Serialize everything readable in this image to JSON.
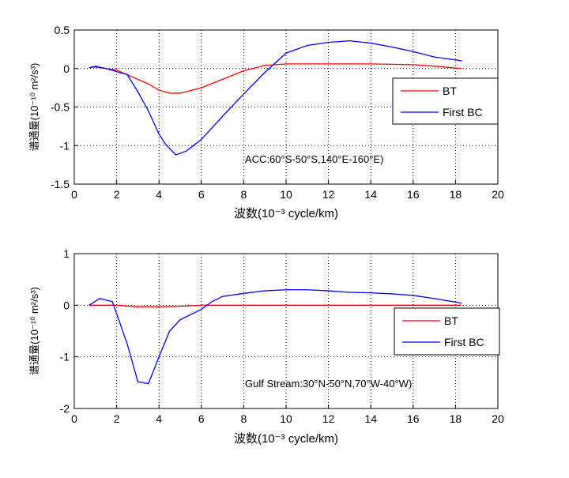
{
  "chart_data": [
    {
      "type": "line",
      "xlabel": "波数(10⁻³ cycle/km)",
      "ylabel": "谱通量(10⁻¹⁰ m²/s³)",
      "annotation": "ACC:60°S-50°S,140°E-160°E)",
      "xlim": [
        0,
        20
      ],
      "ylim": [
        -1.5,
        0.5
      ],
      "xticks": [
        "0",
        "2",
        "4",
        "6",
        "8",
        "10",
        "12",
        "14",
        "16",
        "18",
        "20"
      ],
      "yticks": [
        "-1.5",
        "-1",
        "-0.5",
        "0",
        "0.5"
      ],
      "yticks_values": [
        -1.5,
        -1,
        -0.5,
        0,
        0.5
      ],
      "grid": true,
      "legend_placement": "right",
      "series": [
        {
          "name": "BT",
          "color": "#ff0000",
          "x": [
            0.7,
            1,
            2,
            3,
            3.5,
            4,
            4.5,
            5,
            6,
            7,
            8,
            9,
            10,
            12,
            14,
            16,
            17,
            18.3
          ],
          "y": [
            0.01,
            0.02,
            -0.02,
            -0.14,
            -0.2,
            -0.28,
            -0.32,
            -0.32,
            -0.25,
            -0.14,
            -0.03,
            0.04,
            0.06,
            0.06,
            0.06,
            0.05,
            0.03,
            0.0
          ]
        },
        {
          "name": "First BC",
          "color": "#0000ff",
          "x": [
            0.7,
            1,
            1.5,
            2,
            2.5,
            3,
            3.5,
            4,
            4.3,
            4.8,
            5.3,
            6,
            7,
            8,
            9,
            10,
            11,
            12,
            13,
            14,
            15,
            16,
            17,
            18.3
          ],
          "y": [
            0.01,
            0.03,
            0.0,
            -0.04,
            -0.08,
            -0.3,
            -0.55,
            -0.85,
            -0.98,
            -1.12,
            -1.07,
            -0.92,
            -0.62,
            -0.33,
            -0.05,
            0.2,
            0.3,
            0.34,
            0.36,
            0.33,
            0.28,
            0.22,
            0.15,
            0.1
          ]
        }
      ]
    },
    {
      "type": "line",
      "xlabel": "波数(10⁻³ cycle/km)",
      "ylabel": "谱通量(10⁻¹⁰ m²/s³)",
      "annotation": "Gulf Stream:30°N-50°N,70°W-40°W)",
      "xlim": [
        0,
        20
      ],
      "ylim": [
        -2,
        1
      ],
      "xticks": [
        "0",
        "2",
        "4",
        "6",
        "8",
        "10",
        "12",
        "14",
        "16",
        "18",
        "20"
      ],
      "yticks": [
        "-2",
        "-1",
        "0",
        "1"
      ],
      "yticks_values": [
        -2,
        -1,
        0,
        1
      ],
      "grid": true,
      "legend_placement": "right",
      "series": [
        {
          "name": "BT",
          "color": "#ff0000",
          "x": [
            0.7,
            2,
            3,
            4,
            5,
            6,
            10,
            18.3
          ],
          "y": [
            0,
            0,
            -0.03,
            -0.03,
            -0.02,
            0,
            0,
            0
          ]
        },
        {
          "name": "First BC",
          "color": "#0000ff",
          "x": [
            0.7,
            1.2,
            1.8,
            2.5,
            3,
            3.5,
            4,
            4.5,
            5,
            5.5,
            6,
            6.5,
            7,
            8,
            9,
            10,
            11,
            12,
            13,
            14,
            15,
            16,
            17,
            18.3
          ],
          "y": [
            0,
            0.13,
            0.07,
            -0.75,
            -1.48,
            -1.52,
            -1.0,
            -0.5,
            -0.28,
            -0.18,
            -0.08,
            0.07,
            0.17,
            0.23,
            0.28,
            0.3,
            0.3,
            0.28,
            0.25,
            0.24,
            0.22,
            0.19,
            0.13,
            0.04
          ]
        }
      ]
    }
  ]
}
